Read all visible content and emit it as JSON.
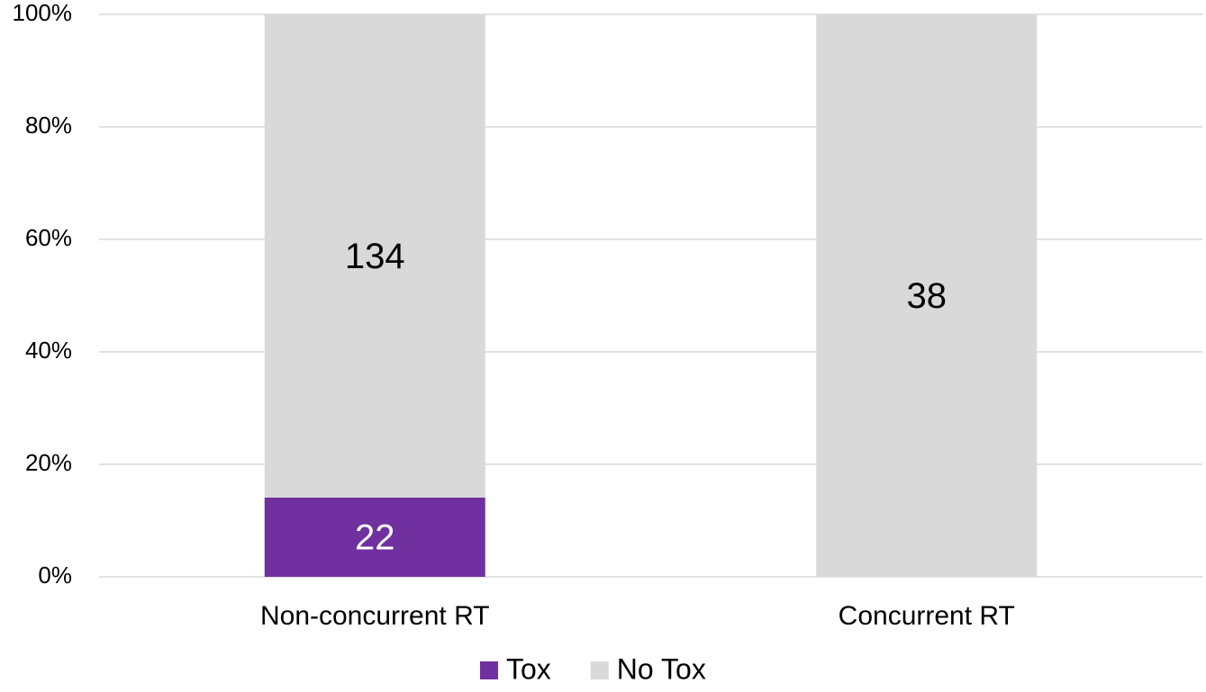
{
  "chart_data": {
    "type": "bar",
    "stacking": "percent",
    "categories": [
      "Non-concurrent RT",
      "Concurrent RT"
    ],
    "series": [
      {
        "name": "Tox",
        "color": "#7030a0",
        "label_color": "#ffffff",
        "values": [
          22,
          0
        ]
      },
      {
        "name": "No Tox",
        "color": "#d9d9d9",
        "label_color": "#000000",
        "values": [
          134,
          38
        ]
      }
    ],
    "ylim": [
      0,
      100
    ],
    "yticks": [
      {
        "value": 0,
        "label": "0%"
      },
      {
        "value": 20,
        "label": "20%"
      },
      {
        "value": 40,
        "label": "40%"
      },
      {
        "value": 60,
        "label": "60%"
      },
      {
        "value": 80,
        "label": "80%"
      },
      {
        "value": 100,
        "label": "100%"
      }
    ],
    "grid": true,
    "legend": "bottom"
  }
}
